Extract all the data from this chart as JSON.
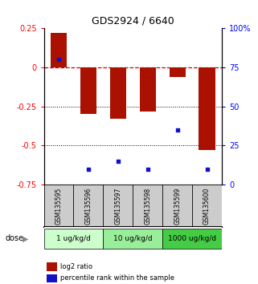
{
  "title": "GDS2924 / 6640",
  "samples": [
    "GSM135595",
    "GSM135596",
    "GSM135597",
    "GSM135598",
    "GSM135599",
    "GSM135600"
  ],
  "log2_ratio": [
    0.22,
    -0.3,
    -0.33,
    -0.28,
    -0.06,
    -0.53
  ],
  "percentile_rank": [
    80,
    10,
    15,
    10,
    35,
    10
  ],
  "bar_color": "#AA1100",
  "dot_color": "#1111CC",
  "ylim_left": [
    -0.75,
    0.25
  ],
  "ylim_right": [
    0,
    100
  ],
  "yticks_left": [
    0.25,
    0,
    -0.25,
    -0.5,
    -0.75
  ],
  "yticks_right": [
    100,
    75,
    50,
    25,
    0
  ],
  "ytick_labels_left": [
    "0.25",
    "0",
    "-0.25",
    "-0.5",
    "-0.75"
  ],
  "ytick_labels_right": [
    "100%",
    "75",
    "50",
    "25",
    "0"
  ],
  "hlines": [
    0,
    -0.25,
    -0.5
  ],
  "hline_styles": [
    "dashed",
    "dotted",
    "dotted"
  ],
  "hline_colors": [
    "#cc0000",
    "black",
    "black"
  ],
  "dose_groups": [
    {
      "label": "1 ug/kg/d",
      "samples": [
        0,
        1
      ],
      "color": "#ccffcc"
    },
    {
      "label": "10 ug/kg/d",
      "samples": [
        2,
        3
      ],
      "color": "#99ee99"
    },
    {
      "label": "1000 ug/kg/d",
      "samples": [
        4,
        5
      ],
      "color": "#44cc44"
    }
  ],
  "dose_label": "dose",
  "legend_red": "log2 ratio",
  "legend_blue": "percentile rank within the sample",
  "bar_width": 0.55,
  "background_color": "#ffffff",
  "plot_bg": "#ffffff",
  "sample_label_bg": "#cccccc"
}
